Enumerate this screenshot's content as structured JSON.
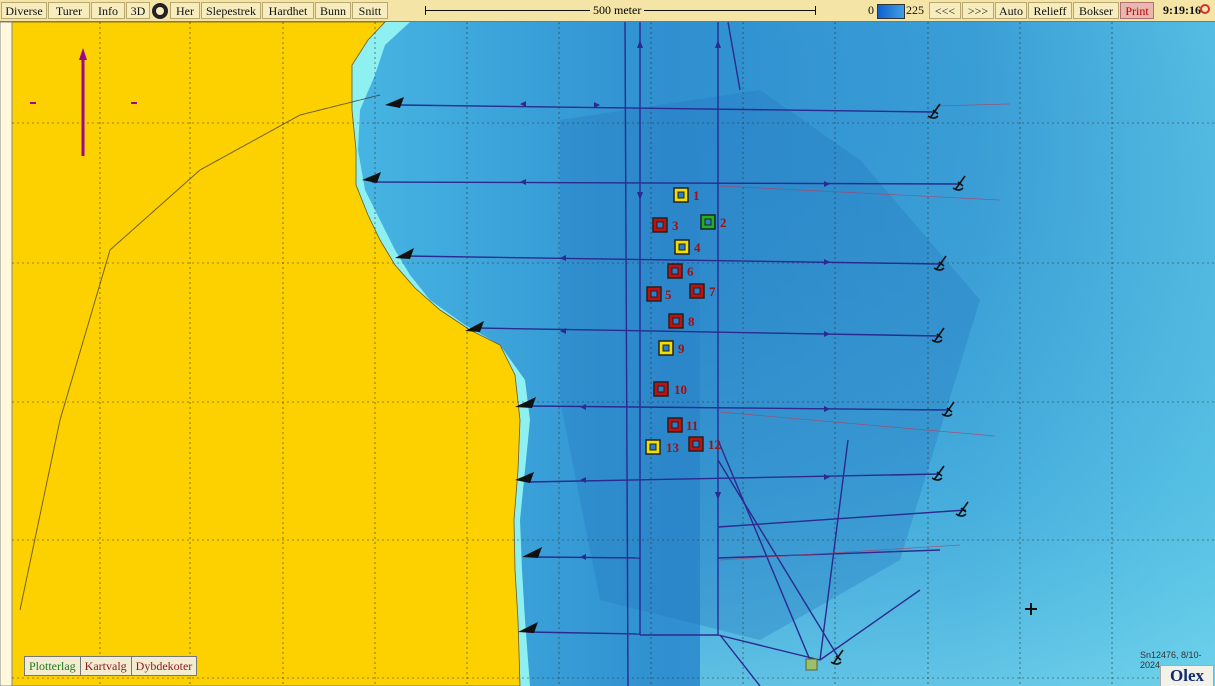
{
  "toolbar": {
    "menu": [
      "Diverse",
      "Turer",
      "Info",
      "3D",
      "Her",
      "Slepestrek",
      "Hardhet",
      "Bunn",
      "Snitt"
    ],
    "scale_label": "500 meter",
    "depth_min": "0",
    "depth_max": "225",
    "nav": [
      "<<<",
      ">>>",
      "Auto",
      "Relieff",
      "Bokser"
    ],
    "print_label": "Print",
    "clock": "9:19:16"
  },
  "colors": {
    "land": "#fdd000",
    "shallow": "#7ee6ee",
    "deep": "#2e8fd0",
    "track": "#2a2a90",
    "red_marker": "#c01010",
    "yellow_marker": "#f0e000",
    "green_marker": "#20b020"
  },
  "markers": [
    {
      "label": "1",
      "color": "yellow"
    },
    {
      "label": "2",
      "color": "green"
    },
    {
      "label": "3",
      "color": "red"
    },
    {
      "label": "4",
      "color": "yellow"
    },
    {
      "label": "5",
      "color": "red"
    },
    {
      "label": "6",
      "color": "red"
    },
    {
      "label": "7",
      "color": "red"
    },
    {
      "label": "8",
      "color": "red"
    },
    {
      "label": "9",
      "color": "yellow"
    },
    {
      "label": "10",
      "color": "red"
    },
    {
      "label": "11",
      "color": "red"
    },
    {
      "label": "12",
      "color": "red"
    },
    {
      "label": "13",
      "color": "yellow"
    }
  ],
  "layer_tabs": [
    "Plotterlag",
    "Kartvalg",
    "Dybdekoter"
  ],
  "copyright": "Sn12476, 8/10-2024",
  "brand": "Olex"
}
